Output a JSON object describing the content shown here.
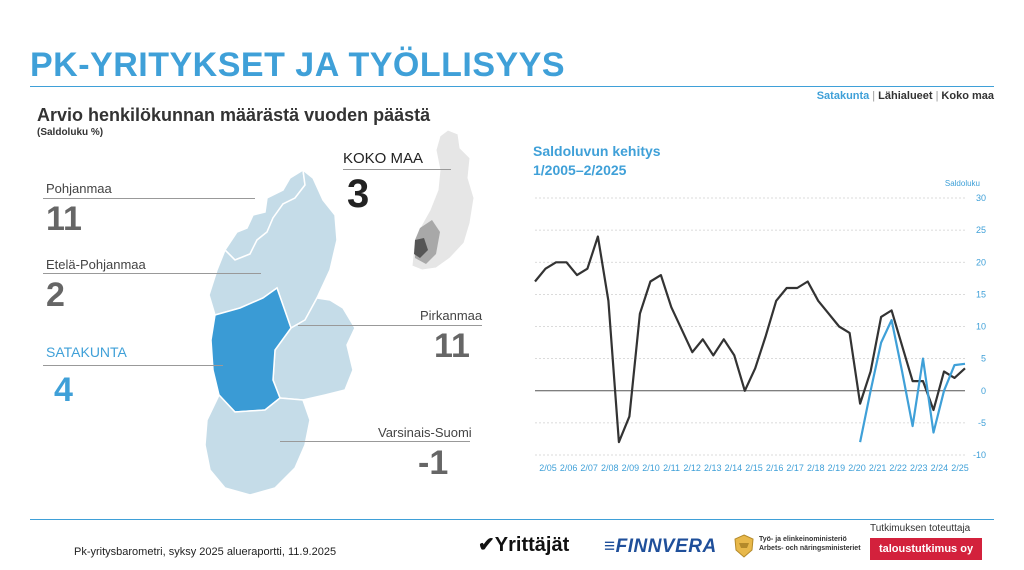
{
  "header": {
    "title": "PK-YRITYKSET JA TYÖLLISYYS",
    "nav": [
      {
        "label": "Satakunta",
        "active": true
      },
      {
        "label": "Lähialueet",
        "active": false
      },
      {
        "label": "Koko maa",
        "active": false
      }
    ]
  },
  "map_panel": {
    "subtitle": "Arvio henkilökunnan määrästä vuoden päästä",
    "note": "(Saldoluku %)",
    "koko_maa": {
      "label": "KOKO MAA",
      "value": "3"
    },
    "regions": [
      {
        "name": "Pohjanmaa",
        "value": "11"
      },
      {
        "name": "Etelä-Pohjanmaa",
        "value": "2"
      },
      {
        "name": "SATAKUNTA",
        "value": "4"
      },
      {
        "name": "Pirkanmaa",
        "value": "11"
      },
      {
        "name": "Varsinais-Suomi",
        "value": "-1"
      }
    ],
    "colors": {
      "highlight": "#3a9bd5",
      "neighbor": "#c5dce8",
      "outline": "#ffffff"
    }
  },
  "chart_data": {
    "type": "line",
    "title": "Saldoluvun kehitys",
    "subtitle": "1/2005–2/2025",
    "ylabel": "Saldoluku",
    "ylim": [
      -10,
      30
    ],
    "yticks": [
      -10,
      -5,
      0,
      5,
      10,
      15,
      20,
      25,
      30
    ],
    "grid": true,
    "x_tick_labels": [
      "2/05",
      "2/06",
      "2/07",
      "2/08",
      "2/09",
      "2/10",
      "2/11",
      "2/12",
      "2/13",
      "2/14",
      "2/15",
      "2/16",
      "2/17",
      "2/18",
      "2/19",
      "2/20",
      "2/21",
      "2/22",
      "2/23",
      "2/24",
      "2/25"
    ],
    "series": [
      {
        "color": "#333333",
        "values": [
          17,
          19,
          20,
          20,
          18,
          19,
          24,
          14,
          -8,
          -4,
          12,
          17,
          18,
          13,
          9.5,
          6,
          8,
          5.5,
          8,
          5.5,
          0,
          3.5,
          8.5,
          14,
          16,
          16,
          17,
          14,
          12,
          10,
          9,
          -2,
          3,
          11.5,
          12.5,
          7,
          1.5,
          1.5,
          -3,
          3,
          2,
          3.5
        ]
      },
      {
        "color": "#3fa0d8",
        "start_index": 31,
        "values": [
          -8,
          0,
          7.5,
          11,
          3,
          -5.5,
          5,
          -6.5,
          0,
          4,
          4.2
        ]
      }
    ]
  },
  "footer": {
    "source": "Pk-yritysbarometri, syksy 2025 alueraportti, 11.9.2025",
    "logos": {
      "yrittajat": "Yrittäjät",
      "finnvera": "FINNVERA",
      "tem_line1": "Työ- ja elinkeinoministeriö",
      "tem_line2": "Arbets- och näringsministeriet"
    },
    "tekija_label": "Tutkimuksen toteuttaja",
    "tekija_name": "taloustutkimus oy"
  }
}
